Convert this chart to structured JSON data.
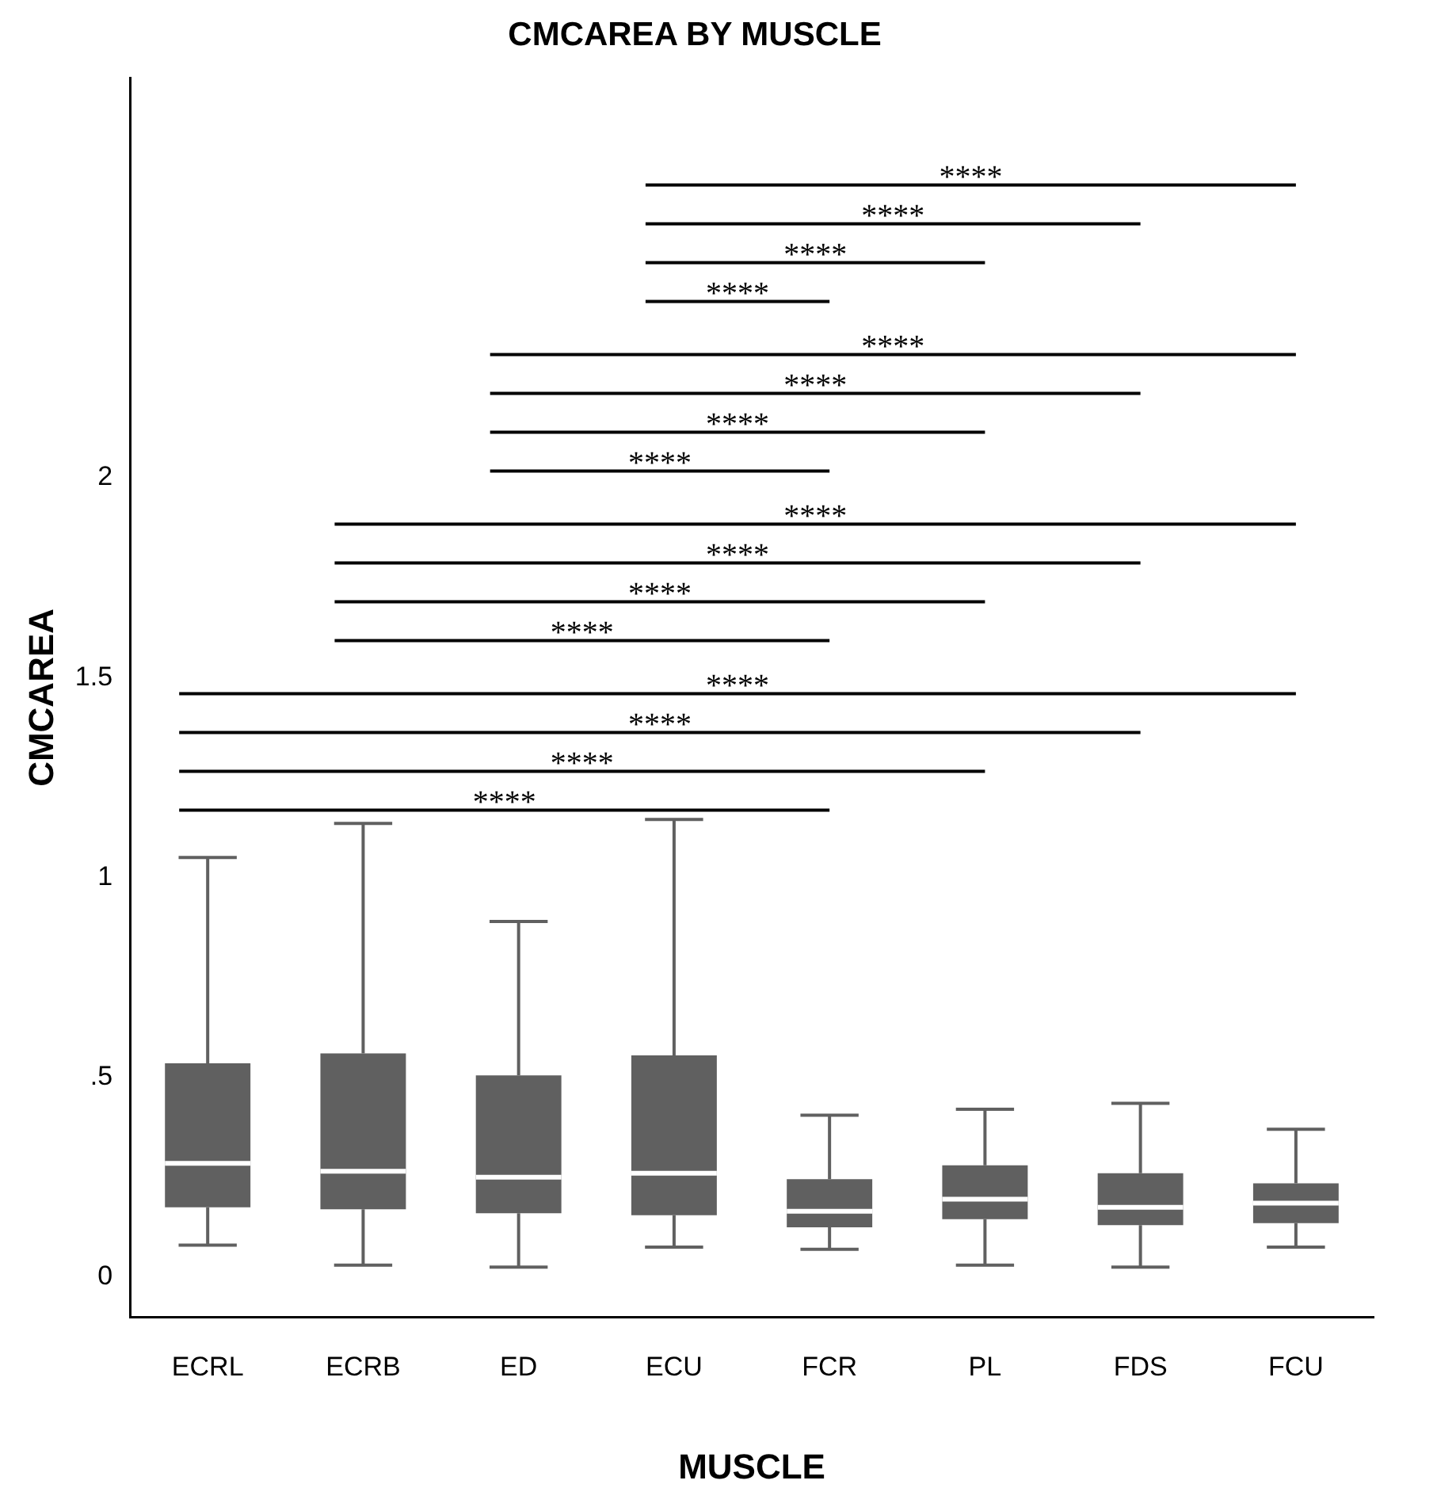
{
  "chart_data": {
    "type": "box",
    "title": "CMCAREA BY MUSCLE",
    "xlabel": "MUSCLE",
    "ylabel": "CMCAREA",
    "categories": [
      "ECRL",
      "ECRB",
      "ED",
      "ECU",
      "FCR",
      "PL",
      "FDS",
      "FCU"
    ],
    "series": [
      {
        "color": "#606060",
        "boxes": [
          {
            "low": 0.08,
            "q1": 0.175,
            "median": 0.285,
            "q3": 0.535,
            "high": 1.05
          },
          {
            "low": 0.03,
            "q1": 0.17,
            "median": 0.265,
            "q3": 0.56,
            "high": 1.135
          },
          {
            "low": 0.025,
            "q1": 0.16,
            "median": 0.25,
            "q3": 0.505,
            "high": 0.89
          },
          {
            "low": 0.075,
            "q1": 0.155,
            "median": 0.26,
            "q3": 0.555,
            "high": 1.145
          },
          {
            "low": 0.07,
            "q1": 0.125,
            "median": 0.165,
            "q3": 0.245,
            "high": 0.405
          },
          {
            "low": 0.03,
            "q1": 0.145,
            "median": 0.195,
            "q3": 0.28,
            "high": 0.42
          },
          {
            "low": 0.025,
            "q1": 0.13,
            "median": 0.175,
            "q3": 0.26,
            "high": 0.435
          },
          {
            "low": 0.075,
            "q1": 0.135,
            "median": 0.185,
            "q3": 0.235,
            "high": 0.37
          }
        ]
      }
    ],
    "ylim": [
      -0.1,
      3.0
    ],
    "yticks": [
      0,
      {
        "value": 0.5,
        "label": ".5"
      },
      1,
      1.5,
      2
    ],
    "grid": false,
    "legend": false,
    "annotations": [
      "****",
      "****",
      "****",
      "****",
      "****",
      "****",
      "****",
      "****",
      "****",
      "****",
      "****",
      "****",
      "****",
      "****",
      "****",
      "****"
    ]
  }
}
